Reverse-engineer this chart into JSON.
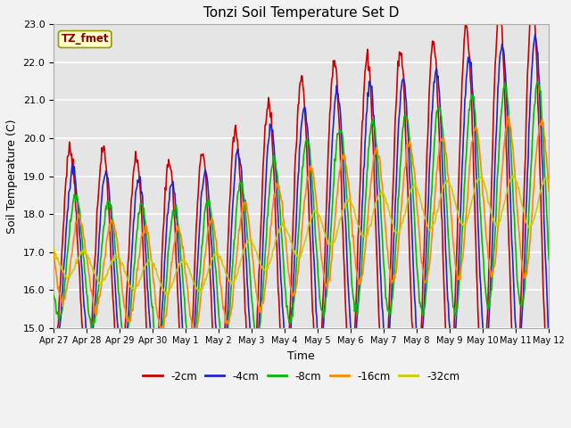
{
  "title": "Tonzi Soil Temperature Set D",
  "xlabel": "Time",
  "ylabel": "Soil Temperature (C)",
  "ylim": [
    15.0,
    23.0
  ],
  "yticks": [
    15.0,
    16.0,
    17.0,
    18.0,
    19.0,
    20.0,
    21.0,
    22.0,
    23.0
  ],
  "xtick_labels": [
    "Apr 27",
    "Apr 28",
    "Apr 29",
    "Apr 30",
    "May 1",
    "May 2",
    "May 3",
    "May 4",
    "May 5",
    "May 6",
    "May 7",
    "May 8",
    "May 9",
    "May 10",
    "May 11",
    "May 12"
  ],
  "legend_label": "TZ_fmet",
  "series_labels": [
    "-2cm",
    "-4cm",
    "-8cm",
    "-16cm",
    "-32cm"
  ],
  "series_colors": [
    "#cc0000",
    "#2222cc",
    "#00bb00",
    "#ff8800",
    "#cccc00"
  ],
  "line_widths": [
    1.2,
    1.2,
    1.2,
    1.2,
    1.2
  ],
  "bg_color": "#e5e5e5",
  "grid_color": "#ffffff",
  "fig_bg_color": "#f2f2f2",
  "n_days": 15,
  "points_per_day": 48,
  "trend_slope": 0.115,
  "trend_intercept": 16.5
}
